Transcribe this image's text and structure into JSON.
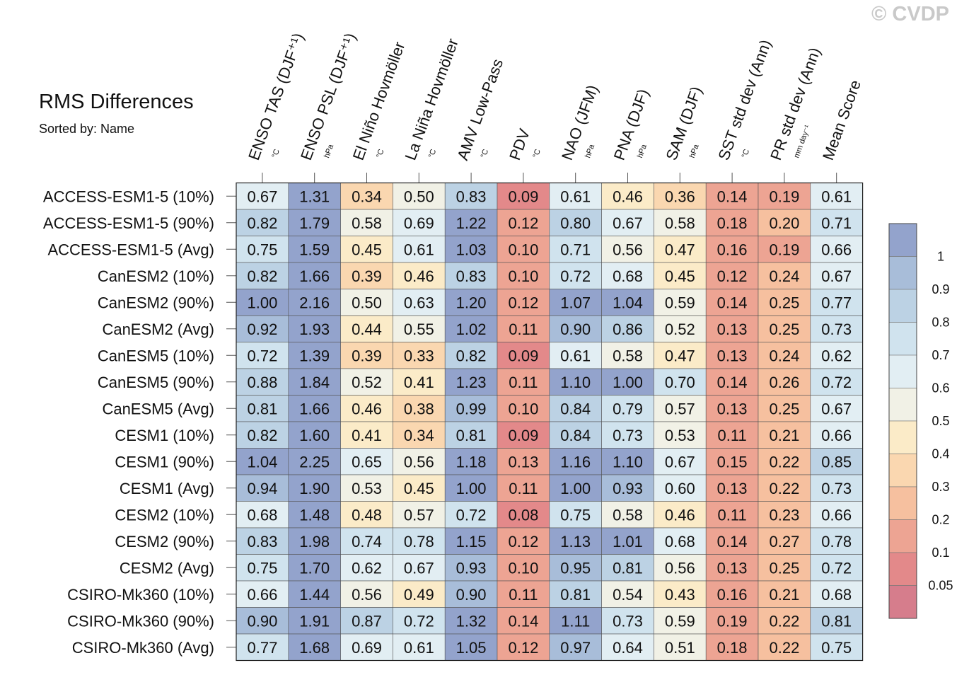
{
  "title": "RMS Differences",
  "subtitle": "Sorted by: Name",
  "watermark": "© CVDP",
  "chart_data": {
    "type": "heatmap",
    "columns": [
      {
        "label": "ENSO TAS (DJF⁺¹)",
        "unit": "°C"
      },
      {
        "label": "ENSO PSL (DJF⁺¹)",
        "unit": "hPa"
      },
      {
        "label": "El Niño Hovmöller",
        "unit": "°C"
      },
      {
        "label": "La Niña Hovmöller",
        "unit": "°C"
      },
      {
        "label": "AMV Low-Pass",
        "unit": "°C"
      },
      {
        "label": "PDV",
        "unit": "°C"
      },
      {
        "label": "NAO (JFM)",
        "unit": "hPa"
      },
      {
        "label": "PNA (DJF)",
        "unit": "hPa"
      },
      {
        "label": "SAM (DJF)",
        "unit": "hPa"
      },
      {
        "label": "SST std dev (Ann)",
        "unit": "°C"
      },
      {
        "label": "PR std dev (Ann)",
        "unit": "mm day⁻¹"
      },
      {
        "label": "Mean Score",
        "unit": ""
      }
    ],
    "rows": [
      "ACCESS-ESM1-5 (10%)",
      "ACCESS-ESM1-5 (90%)",
      "ACCESS-ESM1-5 (Avg)",
      "CanESM2 (10%)",
      "CanESM2 (90%)",
      "CanESM2 (Avg)",
      "CanESM5 (10%)",
      "CanESM5 (90%)",
      "CanESM5 (Avg)",
      "CESM1 (10%)",
      "CESM1 (90%)",
      "CESM1 (Avg)",
      "CESM2 (10%)",
      "CESM2 (90%)",
      "CESM2 (Avg)",
      "CSIRO-Mk360 (10%)",
      "CSIRO-Mk360 (90%)",
      "CSIRO-Mk360 (Avg)"
    ],
    "values": [
      [
        "0.67",
        "1.31",
        "0.34",
        "0.50",
        "0.83",
        "0.09",
        "0.61",
        "0.46",
        "0.36",
        "0.14",
        "0.19",
        "0.61"
      ],
      [
        "0.82",
        "1.79",
        "0.58",
        "0.69",
        "1.22",
        "0.12",
        "0.80",
        "0.67",
        "0.58",
        "0.18",
        "0.20",
        "0.71"
      ],
      [
        "0.75",
        "1.59",
        "0.45",
        "0.61",
        "1.03",
        "0.10",
        "0.71",
        "0.56",
        "0.47",
        "0.16",
        "0.19",
        "0.66"
      ],
      [
        "0.82",
        "1.66",
        "0.39",
        "0.46",
        "0.83",
        "0.10",
        "0.72",
        "0.68",
        "0.45",
        "0.12",
        "0.24",
        "0.67"
      ],
      [
        "1.00",
        "2.16",
        "0.50",
        "0.63",
        "1.20",
        "0.12",
        "1.07",
        "1.04",
        "0.59",
        "0.14",
        "0.25",
        "0.77"
      ],
      [
        "0.92",
        "1.93",
        "0.44",
        "0.55",
        "1.02",
        "0.11",
        "0.90",
        "0.86",
        "0.52",
        "0.13",
        "0.25",
        "0.73"
      ],
      [
        "0.72",
        "1.39",
        "0.39",
        "0.33",
        "0.82",
        "0.09",
        "0.61",
        "0.58",
        "0.47",
        "0.13",
        "0.24",
        "0.62"
      ],
      [
        "0.88",
        "1.84",
        "0.52",
        "0.41",
        "1.23",
        "0.11",
        "1.10",
        "1.00",
        "0.70",
        "0.14",
        "0.26",
        "0.72"
      ],
      [
        "0.81",
        "1.66",
        "0.46",
        "0.38",
        "0.99",
        "0.10",
        "0.84",
        "0.79",
        "0.57",
        "0.13",
        "0.25",
        "0.67"
      ],
      [
        "0.82",
        "1.60",
        "0.41",
        "0.34",
        "0.81",
        "0.09",
        "0.84",
        "0.73",
        "0.53",
        "0.11",
        "0.21",
        "0.66"
      ],
      [
        "1.04",
        "2.25",
        "0.65",
        "0.56",
        "1.18",
        "0.13",
        "1.16",
        "1.10",
        "0.67",
        "0.15",
        "0.22",
        "0.85"
      ],
      [
        "0.94",
        "1.90",
        "0.53",
        "0.45",
        "1.00",
        "0.11",
        "1.00",
        "0.93",
        "0.60",
        "0.13",
        "0.22",
        "0.73"
      ],
      [
        "0.68",
        "1.48",
        "0.48",
        "0.57",
        "0.72",
        "0.08",
        "0.75",
        "0.58",
        "0.46",
        "0.11",
        "0.23",
        "0.66"
      ],
      [
        "0.83",
        "1.98",
        "0.74",
        "0.78",
        "1.15",
        "0.12",
        "1.13",
        "1.01",
        "0.68",
        "0.14",
        "0.27",
        "0.78"
      ],
      [
        "0.75",
        "1.70",
        "0.62",
        "0.67",
        "0.93",
        "0.10",
        "0.95",
        "0.81",
        "0.56",
        "0.13",
        "0.25",
        "0.72"
      ],
      [
        "0.66",
        "1.44",
        "0.56",
        "0.49",
        "0.90",
        "0.11",
        "0.81",
        "0.54",
        "0.43",
        "0.16",
        "0.21",
        "0.68"
      ],
      [
        "0.90",
        "1.91",
        "0.87",
        "0.72",
        "1.32",
        "0.14",
        "1.11",
        "0.73",
        "0.59",
        "0.19",
        "0.22",
        "0.81"
      ],
      [
        "0.77",
        "1.68",
        "0.69",
        "0.61",
        "1.05",
        "0.12",
        "0.97",
        "0.64",
        "0.51",
        "0.18",
        "0.22",
        "0.75"
      ]
    ],
    "colorbar": {
      "labels": [
        "1",
        "0.9",
        "0.8",
        "0.7",
        "0.6",
        "0.5",
        "0.4",
        "0.3",
        "0.2",
        "0.1",
        "0.05"
      ],
      "thresholds": [
        1.0,
        0.9,
        0.8,
        0.7,
        0.6,
        0.5,
        0.4,
        0.3,
        0.2,
        0.1,
        0.05
      ],
      "colors": [
        "#93a3cc",
        "#a8bdd9",
        "#bcd2e4",
        "#d0e3ee",
        "#e2eef3",
        "#f1f1e6",
        "#fbebc8",
        "#fad7b0",
        "#f6c09f",
        "#eda493",
        "#e3898a",
        "#d67d8c"
      ]
    }
  }
}
